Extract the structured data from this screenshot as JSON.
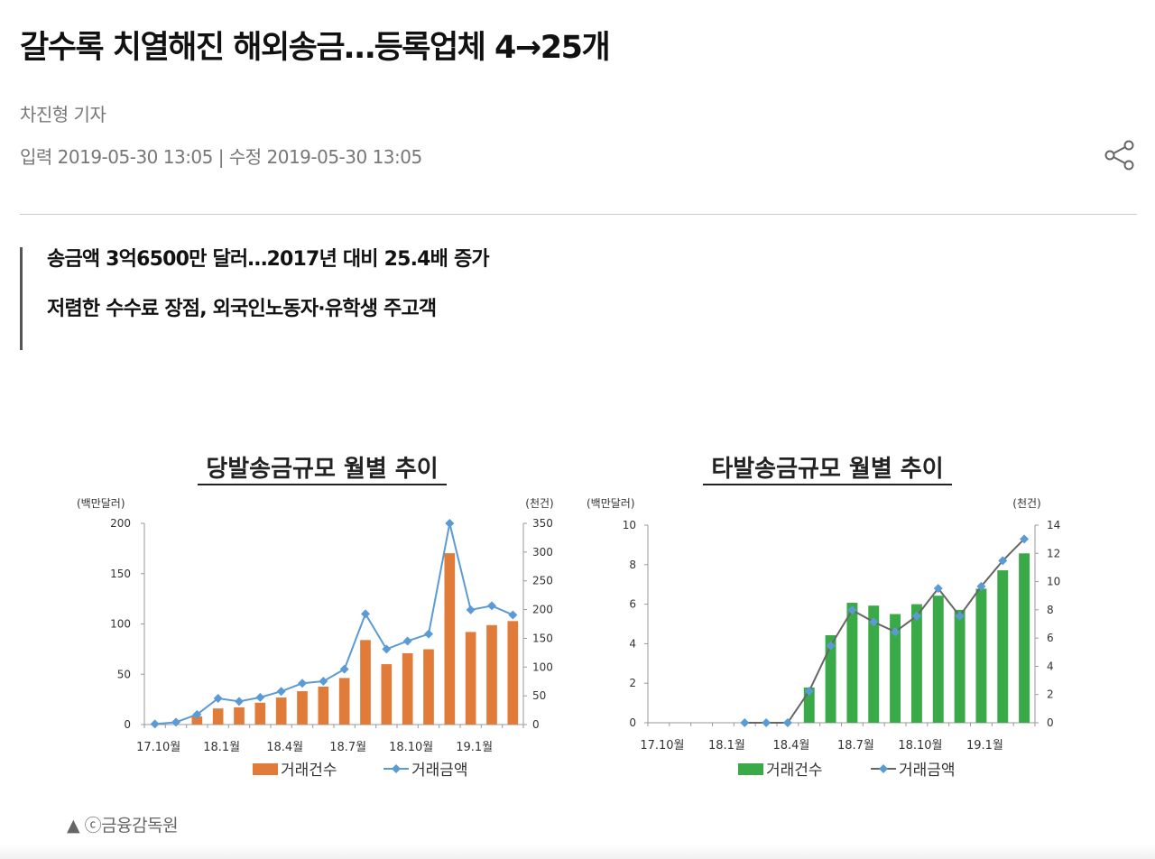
{
  "article": {
    "headline": "갈수록 치열해진 해외송금…등록업체 4→25개",
    "author": "차진형 기자",
    "dates": "입력 2019-05-30 13:05 | 수정 2019-05-30 13:05",
    "subtitles": [
      "송금액 3억6500만 달러…2017년 대비 25.4배 증가",
      "저렴한 수수료 장점, 외국인노동자·유학생 주고객"
    ],
    "share_icon": "share-icon",
    "caption": "▲ ⓒ금융감독원"
  },
  "chart_data": [
    {
      "type": "bar+line",
      "title": "당발송금규모 월별 추이",
      "ylabel_left": "(백만달러)",
      "ylabel_right": "(천건)",
      "ylim_left": [
        0,
        200
      ],
      "yticks_left": [
        "0",
        "50",
        "100",
        "150",
        "200"
      ],
      "ylim_right": [
        0,
        350
      ],
      "yticks_right": [
        "0",
        "50",
        "100",
        "150",
        "200",
        "250",
        "300",
        "350"
      ],
      "categories": [
        "17.10",
        "17.11",
        "17.12",
        "18.1",
        "18.2",
        "18.3",
        "18.4",
        "18.5",
        "18.6",
        "18.7",
        "18.8",
        "18.9",
        "18.10",
        "18.11",
        "18.12",
        "19.1",
        "19.2",
        "19.3"
      ],
      "xtick_labels": [
        "17.10월",
        "",
        "",
        "18.1월",
        "",
        "",
        "18.4월",
        "",
        "",
        "18.7월",
        "",
        "",
        "18.10월",
        "",
        "",
        "19.1월",
        "",
        ""
      ],
      "grid": false,
      "legend_placement": "bottom",
      "series": [
        {
          "name": "거래건수",
          "kind": "bar",
          "axis": "right",
          "color": "#e07b39",
          "values": [
            0,
            0,
            14,
            28,
            30,
            38,
            47,
            58,
            66,
            81,
            147,
            105,
            124,
            131,
            298,
            161,
            173,
            180
          ]
        },
        {
          "name": "거래금액",
          "kind": "line",
          "axis": "left",
          "color": "#5b9bd5",
          "line_color": "#5b9bd5",
          "values": [
            0.6,
            2.3,
            10,
            26,
            23,
            27,
            33,
            41,
            43,
            55,
            110,
            75,
            83,
            90,
            200,
            114,
            118,
            109
          ]
        }
      ]
    },
    {
      "type": "bar+line",
      "title": "타발송금규모 월별 추이",
      "ylabel_left": "(백만달러)",
      "ylabel_right": "(천건)",
      "ylim_left": [
        0,
        10
      ],
      "yticks_left": [
        "0",
        "2",
        "4",
        "6",
        "8",
        "10"
      ],
      "ylim_right": [
        0,
        14
      ],
      "yticks_right": [
        "0",
        "2",
        "4",
        "6",
        "8",
        "10",
        "12",
        "14"
      ],
      "categories": [
        "17.10",
        "17.11",
        "17.12",
        "18.1",
        "18.2",
        "18.3",
        "18.4",
        "18.5",
        "18.6",
        "18.7",
        "18.8",
        "18.9",
        "18.10",
        "18.11",
        "18.12",
        "19.1",
        "19.2",
        "19.3"
      ],
      "xtick_labels": [
        "17.10월",
        "",
        "",
        "18.1월",
        "",
        "",
        "18.4월",
        "",
        "",
        "18.7월",
        "",
        "",
        "18.10월",
        "",
        "",
        "19.1월",
        "",
        ""
      ],
      "grid": false,
      "legend_placement": "bottom",
      "series": [
        {
          "name": "거래건수",
          "kind": "bar",
          "axis": "right",
          "color": "#3aaa48",
          "values": [
            null,
            null,
            null,
            null,
            null,
            null,
            null,
            2.5,
            6.2,
            8.5,
            8.3,
            7.7,
            8.4,
            9.0,
            8.0,
            9.5,
            10.8,
            12.0
          ]
        },
        {
          "name": "거래금액",
          "kind": "line",
          "axis": "left",
          "color": "#5b9bd5",
          "line_color": "#666666",
          "values": [
            null,
            null,
            null,
            null,
            0,
            0,
            0,
            1.6,
            3.9,
            5.7,
            5.1,
            4.6,
            5.4,
            6.8,
            5.4,
            6.9,
            8.2,
            9.3
          ]
        }
      ]
    }
  ]
}
